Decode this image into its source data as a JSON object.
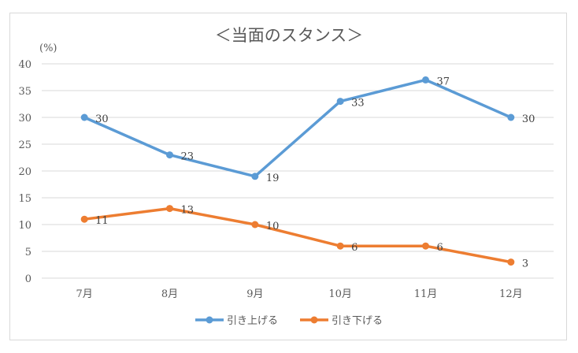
{
  "chart_data": {
    "type": "line",
    "title": "＜当面のスタンス＞",
    "ylabel": "(%)",
    "xlabel": "",
    "categories": [
      "7月",
      "8月",
      "9月",
      "10月",
      "11月",
      "12月"
    ],
    "ylim": [
      0,
      40
    ],
    "yticks": [
      0,
      5,
      10,
      15,
      20,
      25,
      30,
      35,
      40
    ],
    "grid": true,
    "legend": "bottom",
    "series": [
      {
        "name": "引き上げる",
        "color": "#5b9bd5",
        "values": [
          30,
          23,
          19,
          33,
          37,
          30
        ]
      },
      {
        "name": "引き下げる",
        "color": "#ed7d31",
        "values": [
          11,
          13,
          10,
          6,
          6,
          3
        ]
      }
    ]
  }
}
